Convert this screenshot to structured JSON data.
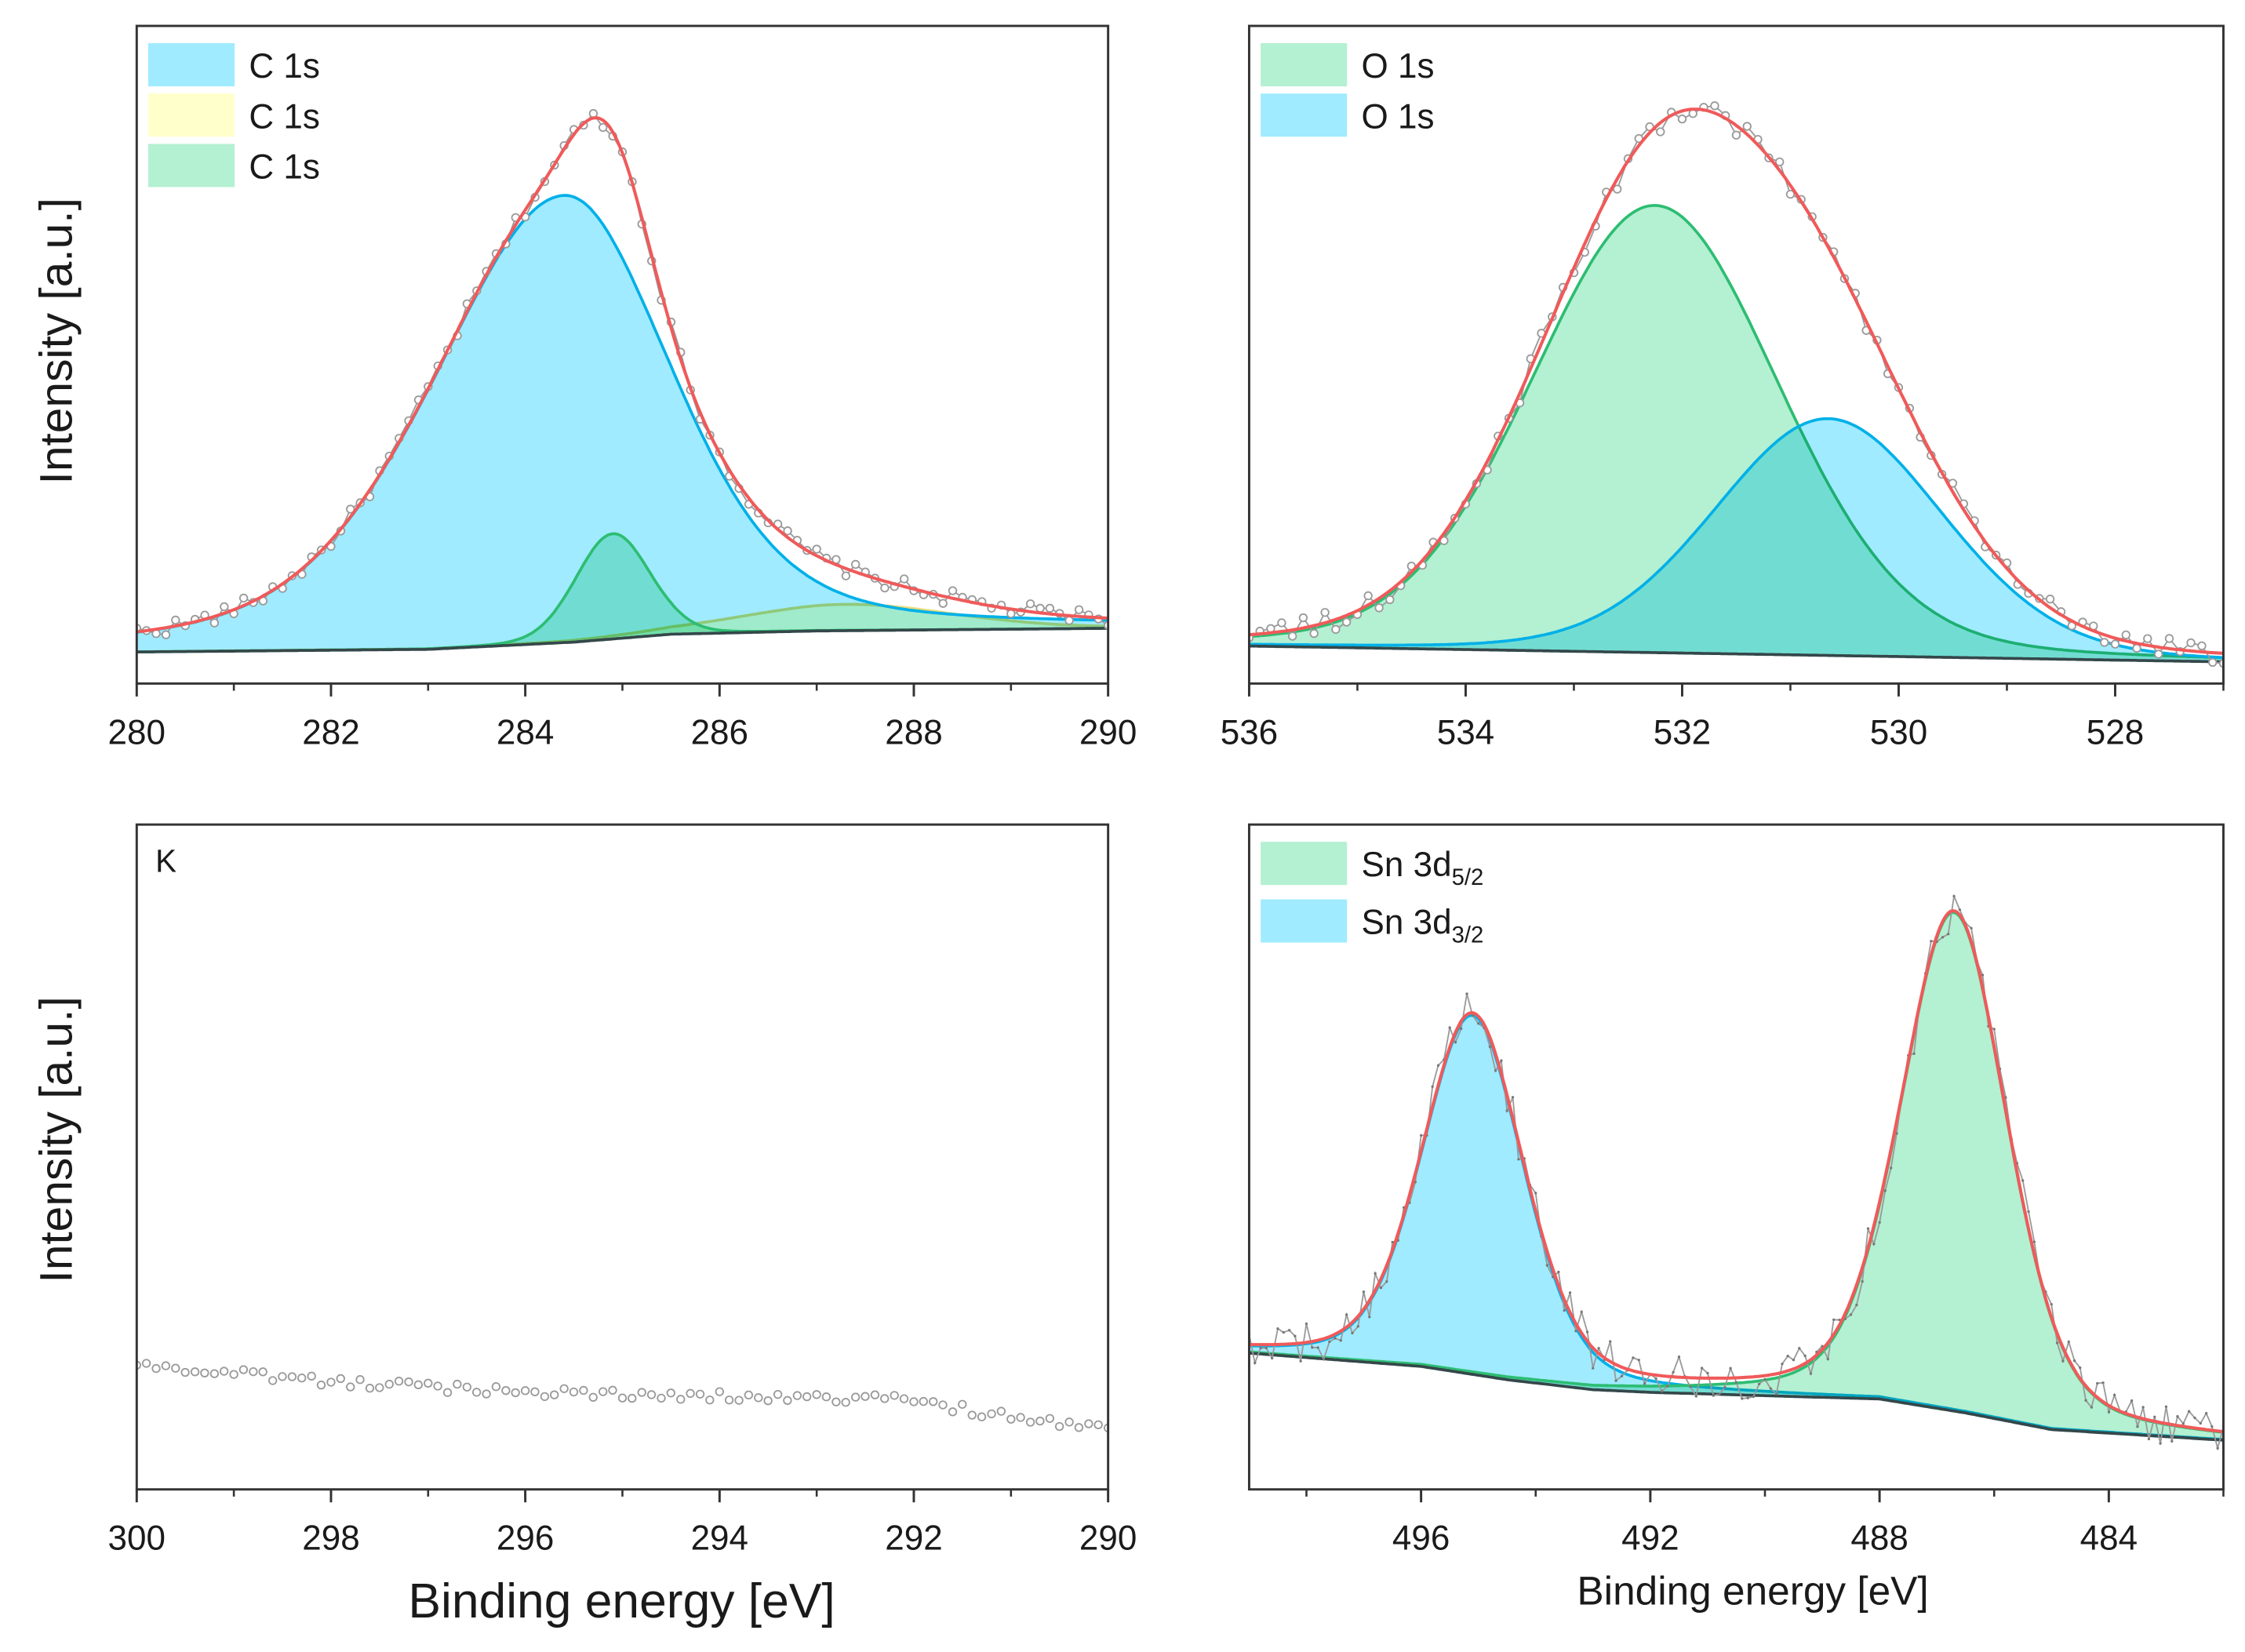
{
  "figure": {
    "ylabel_top": "Intensity [a.u.]",
    "ylabel_bottom": "Intensity [a.u.]",
    "xlabel_left": "Binding energy [eV]",
    "xlabel_right": "Binding energy [eV]"
  },
  "colors": {
    "blue_fill": "#a0ebff",
    "blue_line": "#00b0e8",
    "green_fill": "#b4f0d2",
    "green_line": "#2dbd72",
    "yellow_fill": "#ffffcc",
    "yellow_line": "#e6dc7a",
    "envelope": "#f05a5a",
    "background_line": "#34474a",
    "data": "#9a9a9a",
    "axis": "#333333"
  },
  "chart_data": [
    {
      "id": "c1s",
      "type": "line",
      "title": "",
      "xlabel": "",
      "ylabel": "Intensity [a.u.]",
      "xlim": [
        280,
        290
      ],
      "ylim": [
        0,
        100
      ],
      "grid": false,
      "xticks": [
        "280",
        "282",
        "284",
        "286",
        "288",
        "290"
      ],
      "minor_step": 1,
      "legend_position": "top-left",
      "legend": [
        {
          "label": "C 1s",
          "sub": "",
          "color": "blue"
        },
        {
          "label": "C 1s",
          "sub": "",
          "color": "yellow"
        },
        {
          "label": "C 1s",
          "sub": "",
          "color": "green"
        }
      ],
      "annotation": "",
      "peaks": [
        {
          "name": "C 1s",
          "color": "yellow",
          "center": 287.3,
          "height": 4,
          "fwhm_below": 2.6,
          "fwhm_above": 2.6,
          "mix": 0.2
        },
        {
          "name": "C 1s",
          "color": "blue",
          "center": 284.4,
          "height": 68,
          "fwhm_below": 3.2,
          "fwhm_above": 2.6,
          "mix": 0.35
        },
        {
          "name": "C 1s",
          "color": "green",
          "center": 284.9,
          "height": 16,
          "fwhm_below": 0.9,
          "fwhm_above": 0.9,
          "mix": 0.1
        }
      ],
      "background": [
        [
          280,
          4.8
        ],
        [
          283,
          5.2
        ],
        [
          284.5,
          6.3
        ],
        [
          285.5,
          7.5
        ],
        [
          287,
          8.0
        ],
        [
          290,
          8.4
        ]
      ],
      "data_step": 0.1,
      "noise": 1.2,
      "markers": "circle",
      "show_fit": true
    },
    {
      "id": "o1s",
      "type": "line",
      "title": "",
      "xlabel": "",
      "ylabel": "",
      "xlim": [
        536,
        527
      ],
      "ylim": [
        0,
        100
      ],
      "grid": false,
      "xticks": [
        "536",
        "534",
        "532",
        "530",
        "528"
      ],
      "minor_step": 1,
      "legend_position": "top-left",
      "legend": [
        {
          "label": "O 1s",
          "sub": "",
          "color": "green"
        },
        {
          "label": "O 1s",
          "sub": "",
          "color": "blue"
        }
      ],
      "annotation": "",
      "peaks": [
        {
          "name": "O 1s",
          "color": "green",
          "center": 532.25,
          "height": 68,
          "fwhm_below": 2.7,
          "fwhm_above": 2.7,
          "mix": 0.15
        },
        {
          "name": "O 1s",
          "color": "blue",
          "center": 530.65,
          "height": 36,
          "fwhm_below": 2.5,
          "fwhm_above": 2.5,
          "mix": 0.15
        }
      ],
      "background": [
        [
          527,
          3.3
        ],
        [
          536,
          5.7
        ]
      ],
      "data_step": 0.1,
      "noise": 1.6,
      "markers": "circle",
      "show_fit": true
    },
    {
      "id": "k",
      "type": "scatter",
      "title": "",
      "xlabel": "Binding energy [eV]",
      "ylabel": "Intensity [a.u.]",
      "xlim": [
        300,
        290
      ],
      "ylim": [
        0,
        100
      ],
      "grid": false,
      "xticks": [
        "300",
        "298",
        "296",
        "294",
        "292",
        "290"
      ],
      "minor_step": 1,
      "legend_position": "",
      "legend": [],
      "annotation": "K",
      "peaks": [],
      "background": [
        [
          290,
          9.5
        ],
        [
          291,
          10.8
        ],
        [
          292,
          13.4
        ],
        [
          294,
          14.0
        ],
        [
          296,
          14.6
        ],
        [
          298,
          16.2
        ],
        [
          300,
          18.8
        ]
      ],
      "data_step": 0.1,
      "noise": 0.7,
      "markers": "circle",
      "show_fit": false
    },
    {
      "id": "sn3d",
      "type": "line",
      "title": "",
      "xlabel": "Binding energy [eV]",
      "ylabel": "",
      "xlim": [
        499,
        482
      ],
      "ylim": [
        0,
        100
      ],
      "grid": false,
      "xticks": [
        "496",
        "492",
        "488",
        "484"
      ],
      "minor_step": 2,
      "legend_position": "top-left",
      "legend": [
        {
          "label": "Sn 3d",
          "sub": "5/2",
          "color": "green"
        },
        {
          "label": "Sn 3d",
          "sub": "3/2",
          "color": "blue"
        }
      ],
      "annotation": "",
      "peaks": [
        {
          "name": "Sn 3d3/2",
          "color": "blue",
          "center": 495.1,
          "height": 54,
          "fwhm_below": 2.1,
          "fwhm_above": 2.1,
          "mix": 0.3
        },
        {
          "name": "Sn 3d5/2",
          "color": "green",
          "center": 486.7,
          "height": 75,
          "fwhm_below": 2.2,
          "fwhm_above": 2.2,
          "mix": 0.3
        }
      ],
      "background": [
        [
          482,
          7.4
        ],
        [
          485,
          9.0
        ],
        [
          486.5,
          11.5
        ],
        [
          488,
          13.6
        ],
        [
          492,
          14.6
        ],
        [
          493,
          15.0
        ],
        [
          494.5,
          16.5
        ],
        [
          496,
          18.5
        ],
        [
          499,
          20.5
        ]
      ],
      "data_step": 0.1,
      "noise": 3.2,
      "markers": "dot",
      "show_fit": true
    }
  ]
}
